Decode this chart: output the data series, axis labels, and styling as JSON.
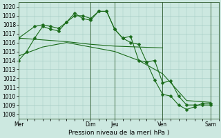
{
  "title": "Pression niveau de la mer( hPa )",
  "ylabel_ticks": [
    1008,
    1009,
    1010,
    1011,
    1012,
    1013,
    1014,
    1015,
    1016,
    1017,
    1018,
    1019,
    1020
  ],
  "ylim": [
    1007.5,
    1020.5
  ],
  "xtick_labels": [
    "Mer",
    "Dim",
    "Jeu",
    "Ven",
    "Sam"
  ],
  "xtick_positions": [
    0,
    9,
    12,
    18,
    24
  ],
  "xlim": [
    0,
    25
  ],
  "background_color": "#cce8e0",
  "grid_color": "#a0c8c0",
  "line_color": "#1a6b1a",
  "vline_positions": [
    9,
    12,
    18,
    24
  ],
  "series": [
    {
      "x": [
        0,
        1,
        2,
        3,
        4,
        5,
        6,
        7,
        8,
        9,
        10,
        11,
        12,
        13,
        14,
        15,
        16,
        17,
        18,
        19,
        20,
        21,
        22,
        23,
        24
      ],
      "y": [
        1014.0,
        1015.0,
        1016.5,
        1017.8,
        1017.5,
        1017.3,
        1018.3,
        1019.0,
        1019.0,
        1018.7,
        1019.5,
        1019.5,
        1017.5,
        1016.5,
        1016.7,
        1014.0,
        1013.8,
        1014.0,
        1011.5,
        1011.7,
        1010.0,
        1009.0,
        1009.0,
        1009.0,
        1009.0
      ],
      "marker": "D",
      "markersize": 2.5
    },
    {
      "x": [
        0,
        3,
        6,
        9,
        12,
        15,
        18
      ],
      "y": [
        1016.5,
        1016.3,
        1016.1,
        1015.8,
        1015.6,
        1015.5,
        1015.4
      ],
      "marker": null,
      "markersize": 0
    },
    {
      "x": [
        0,
        3,
        6,
        9,
        12,
        15,
        18,
        21,
        24
      ],
      "y": [
        1014.5,
        1015.5,
        1016.0,
        1015.5,
        1015.0,
        1014.0,
        1012.5,
        1009.5,
        1009.3
      ],
      "marker": null,
      "markersize": 0
    },
    {
      "x": [
        0,
        2,
        3,
        4,
        5,
        6,
        7,
        8,
        9,
        10,
        11,
        12,
        13,
        14,
        15,
        16,
        17,
        18,
        19,
        20,
        21,
        22,
        23,
        24
      ],
      "y": [
        1016.5,
        1017.8,
        1018.0,
        1017.8,
        1017.6,
        1018.3,
        1019.3,
        1018.7,
        1018.5,
        1019.5,
        1019.5,
        1017.5,
        1016.5,
        1016.0,
        1015.8,
        1013.8,
        1011.8,
        1010.2,
        1010.0,
        1009.0,
        1008.5,
        1008.8,
        1009.2,
        1009.2
      ],
      "marker": "D",
      "markersize": 2.5
    }
  ]
}
